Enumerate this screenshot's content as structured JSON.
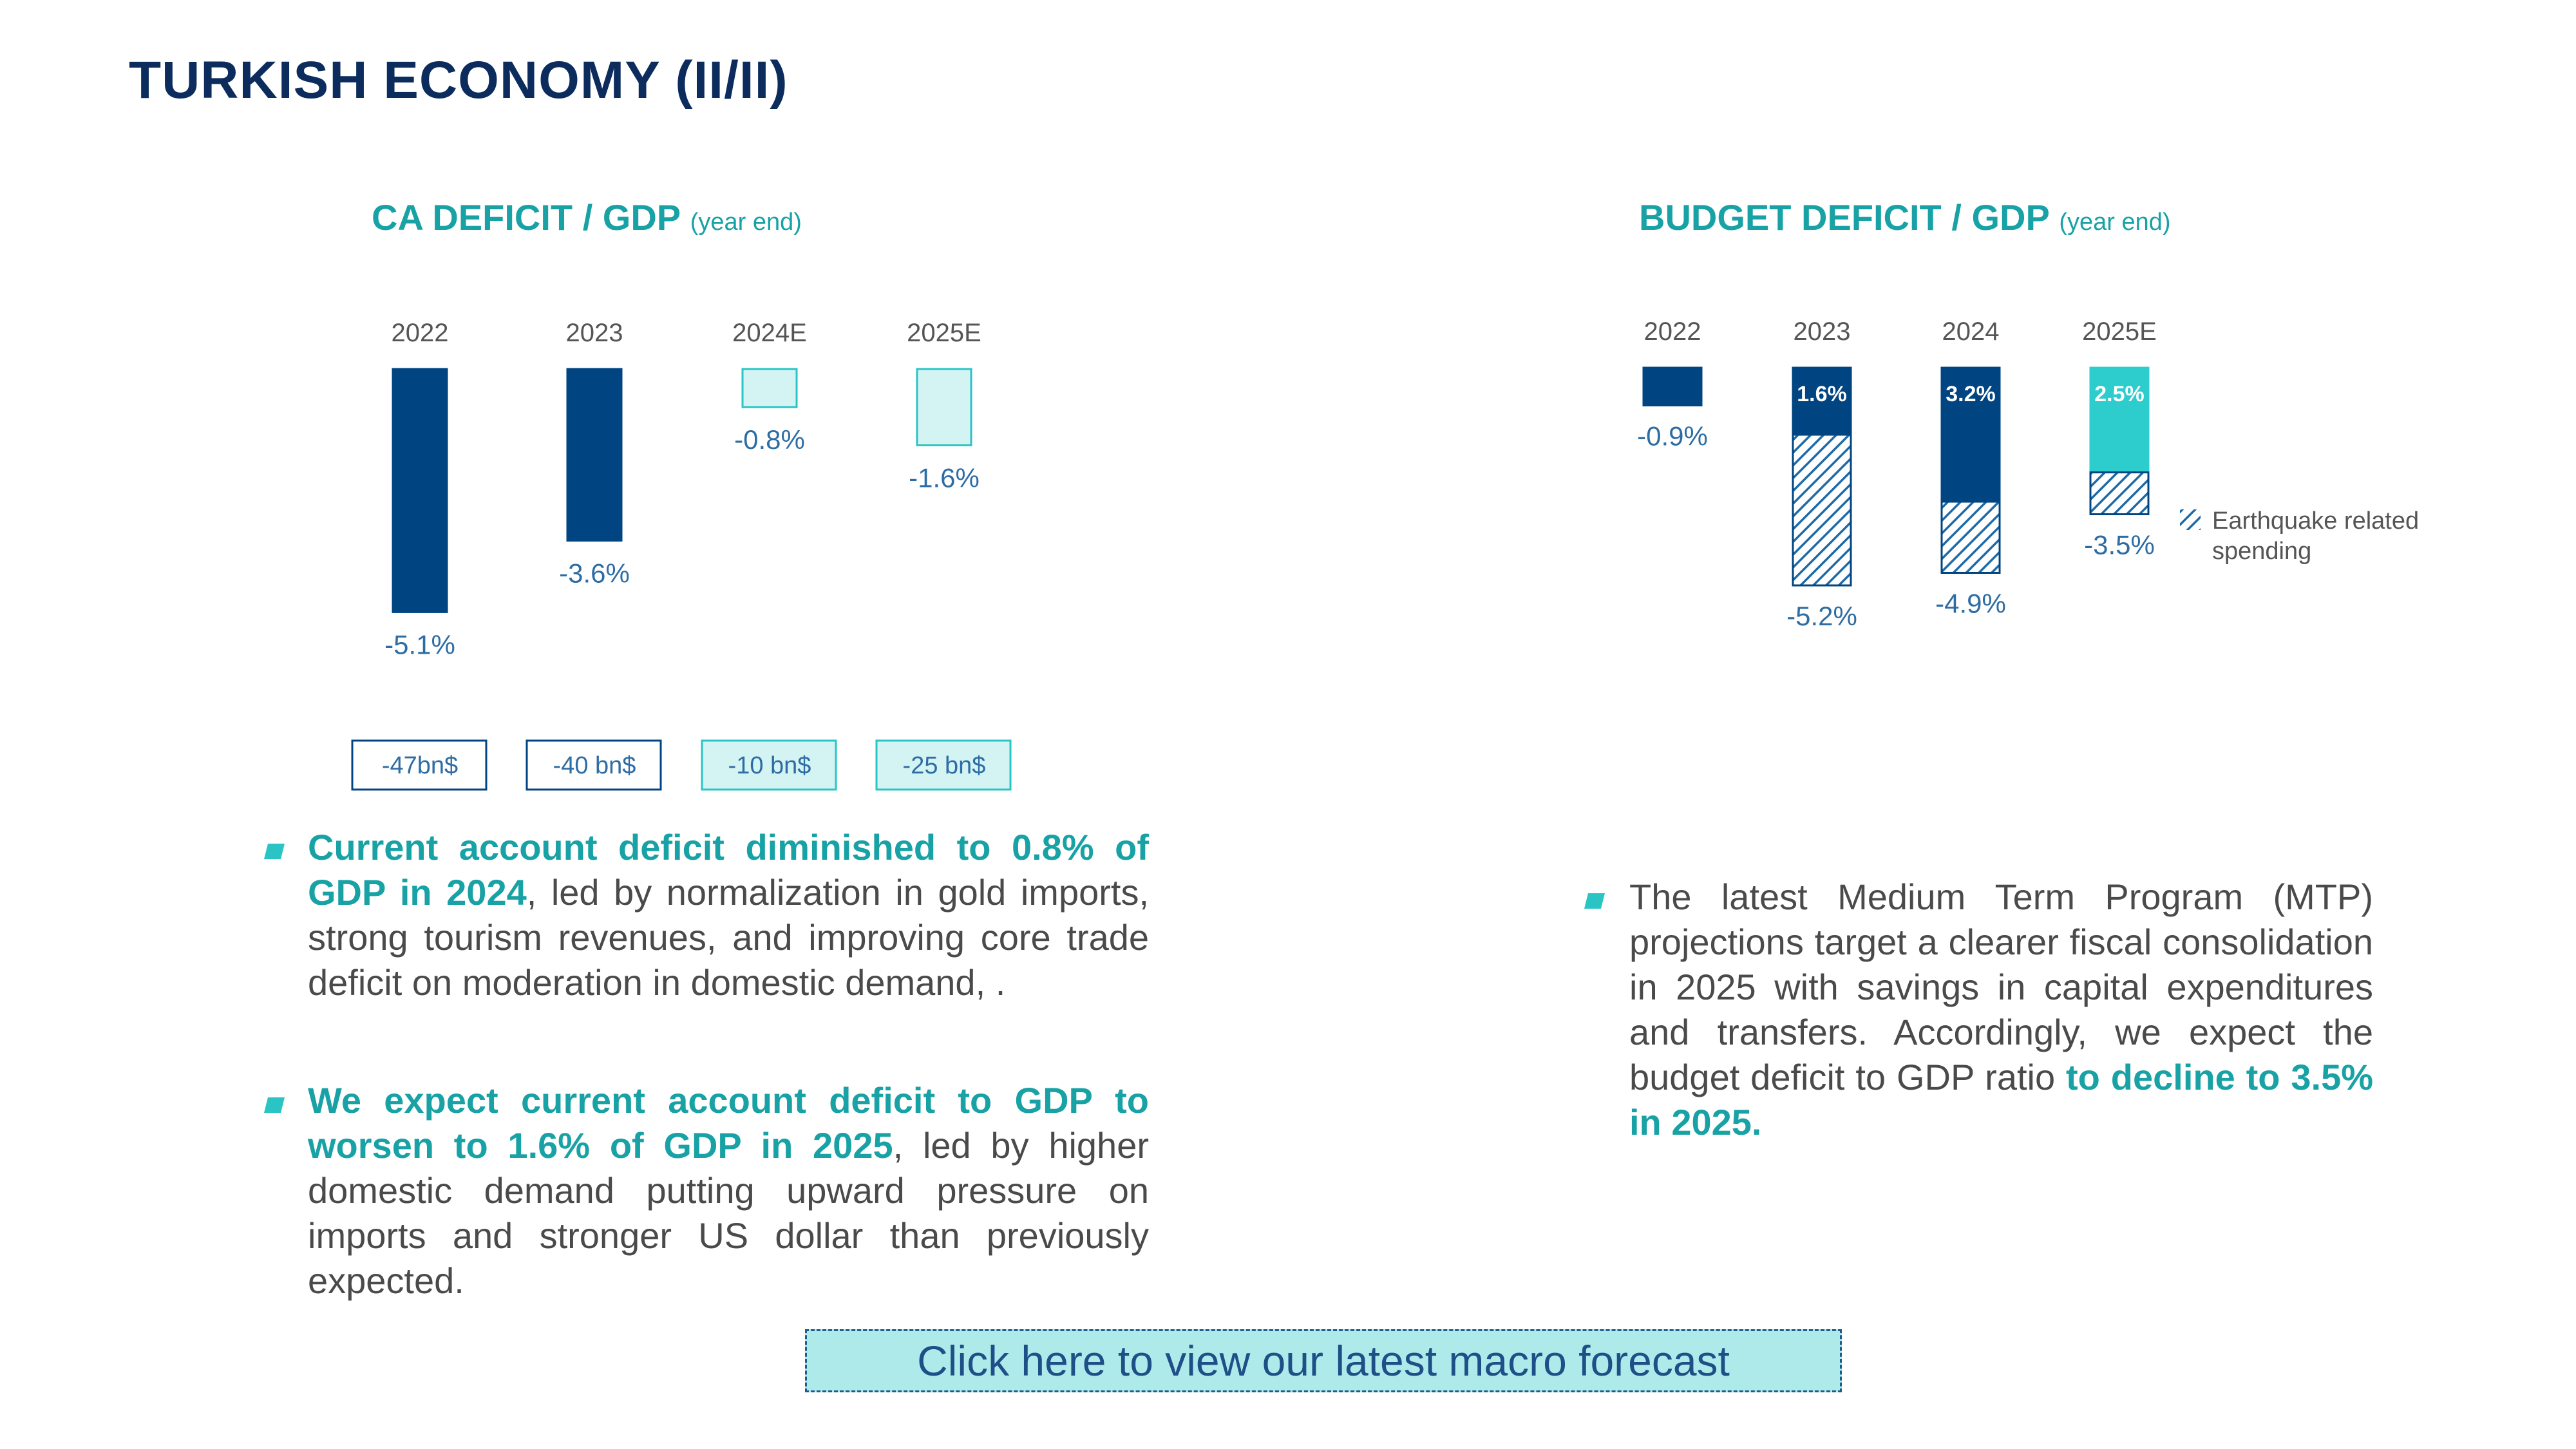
{
  "title": "TURKISH ECONOMY (II/II)",
  "colors": {
    "title": "#0b2c5c",
    "accent_teal": "#18a2a5",
    "dark_bar": "#004481",
    "light_bar": "#d4f4f4",
    "light_bar_border": "#2ac4c4",
    "cyan_bar": "#2dcccd",
    "link_bg": "#aeeaea"
  },
  "ca_chart": {
    "title": "CA DEFICIT / GDP",
    "subtitle": "(year end)",
    "billions": [
      "-47bn$",
      "-40 bn$",
      "-10 bn$",
      "-25 bn$"
    ]
  },
  "budget_chart": {
    "title": "BUDGET DEFICIT / GDP",
    "subtitle": "(year end)",
    "legend": [
      "Earthquake related",
      "spending"
    ]
  },
  "chart_data": [
    {
      "type": "bar",
      "title": "CA DEFICIT / GDP",
      "subtitle": "(year end)",
      "categories": [
        "2022",
        "2023",
        "2024E",
        "2025E"
      ],
      "values": [
        -5.1,
        -3.6,
        -0.8,
        -1.6
      ],
      "value_labels": [
        "-5.1%",
        "-3.6%",
        "-0.8%",
        "-1.6%"
      ],
      "estimate": [
        false,
        false,
        true,
        true
      ],
      "notes": [
        "-47bn$",
        "-40 bn$",
        "-10 bn$",
        "-25 bn$"
      ]
    },
    {
      "type": "bar",
      "title": "BUDGET DEFICIT / GDP",
      "subtitle": "(year end)",
      "categories": [
        "2022",
        "2023",
        "2024",
        "2025E"
      ],
      "series": [
        {
          "values": [
            -0.9,
            -1.6,
            -3.2,
            -2.5
          ]
        },
        {
          "name": "Earthquake related spending",
          "values": [
            0,
            -3.6,
            -1.7,
            -1.0
          ]
        }
      ],
      "segment_labels": [
        "",
        "1.6%",
        "3.2%",
        "2.5%"
      ],
      "totals": [
        -0.9,
        -5.2,
        -4.9,
        -3.5
      ],
      "total_labels": [
        "-0.9%",
        "-5.2%",
        "-4.9%",
        "-3.5%"
      ]
    }
  ],
  "bullets_left": [
    {
      "bold": "Current account deficit diminished to 0.8% of GDP in 2024",
      "text": ", led by normalization in gold imports, strong tourism revenues, and improving core trade deficit on moderation in domestic demand, ."
    },
    {
      "bold": "We expect current account deficit to GDP to worsen to 1.6% of GDP in 2025",
      "text": ", led by higher domestic demand putting upward pressure on imports and stronger US dollar than previously expected."
    }
  ],
  "bullets_right": [
    {
      "text": "The latest Medium Term Program (MTP) projections target a clearer fiscal consolidation in 2025 with savings in capital expenditures and transfers. Accordingly, we expect the budget deficit to GDP ratio ",
      "bold": "to decline to 3.5% in 2025."
    }
  ],
  "link": {
    "label": "Click here to view our latest macro forecast"
  }
}
